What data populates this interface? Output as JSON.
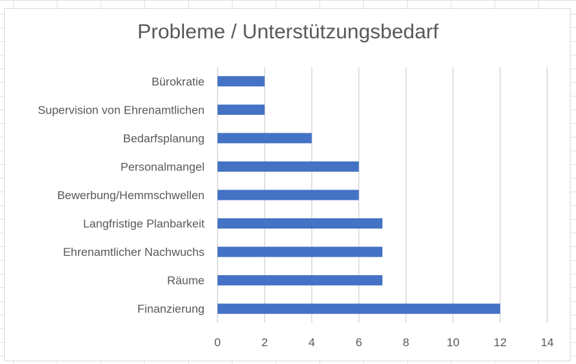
{
  "chart_data": {
    "type": "bar",
    "orientation": "horizontal",
    "title": "Probleme / Unterstützungsbedarf",
    "categories": [
      "Bürokratie",
      "Supervision von Ehrenamtlichen",
      "Bedarfsplanung",
      "Personalmangel",
      "Bewerbung/Hemmschwellen",
      "Langfristige Planbarkeit",
      "Ehrenamtlicher Nachwuchs",
      "Räume",
      "Finanzierung"
    ],
    "values": [
      2,
      2,
      4,
      6,
      6,
      7,
      7,
      7,
      12
    ],
    "xlim": [
      0,
      14
    ],
    "xticks": [
      "0",
      "2",
      "4",
      "6",
      "8",
      "10",
      "12",
      "14"
    ],
    "grid": true,
    "bar_color": "#4472C4",
    "grid_color": "#D9D9D9"
  }
}
